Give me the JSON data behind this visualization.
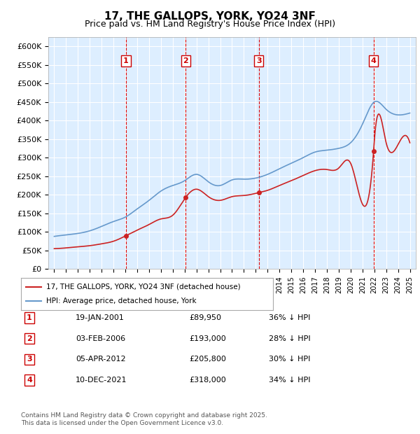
{
  "title_line1": "17, THE GALLOPS, YORK, YO24 3NF",
  "title_line2": "Price paid vs. HM Land Registry's House Price Index (HPI)",
  "xlabel": "",
  "ylabel": "",
  "ylim": [
    0,
    625000
  ],
  "yticks": [
    0,
    50000,
    100000,
    150000,
    200000,
    250000,
    300000,
    350000,
    400000,
    450000,
    500000,
    550000,
    600000
  ],
  "ytick_labels": [
    "£0",
    "£50K",
    "£100K",
    "£150K",
    "£200K",
    "£250K",
    "£300K",
    "£350K",
    "£400K",
    "£450K",
    "£500K",
    "£550K",
    "£600K"
  ],
  "background_color": "#ffffff",
  "plot_bg_color": "#ddeeff",
  "grid_color": "#ffffff",
  "hpi_color": "#6699cc",
  "sale_color": "#cc2222",
  "vline_color": "#dd0000",
  "sale_points": [
    {
      "date_num": 2001.05,
      "price": 89950,
      "label": "1"
    },
    {
      "date_num": 2006.09,
      "price": 193000,
      "label": "2"
    },
    {
      "date_num": 2012.26,
      "price": 205800,
      "label": "3"
    },
    {
      "date_num": 2021.94,
      "price": 318000,
      "label": "4"
    }
  ],
  "table_rows": [
    [
      "1",
      "19-JAN-2001",
      "£89,950",
      "36% ↓ HPI"
    ],
    [
      "2",
      "03-FEB-2006",
      "£193,000",
      "28% ↓ HPI"
    ],
    [
      "3",
      "05-APR-2012",
      "£205,800",
      "30% ↓ HPI"
    ],
    [
      "4",
      "10-DEC-2021",
      "£318,000",
      "34% ↓ HPI"
    ]
  ],
  "legend_entries": [
    "17, THE GALLOPS, YORK, YO24 3NF (detached house)",
    "HPI: Average price, detached house, York"
  ],
  "footer": "Contains HM Land Registry data © Crown copyright and database right 2025.\nThis data is licensed under the Open Government Licence v3.0.",
  "xlim_start": 1994.5,
  "xlim_end": 2025.5
}
